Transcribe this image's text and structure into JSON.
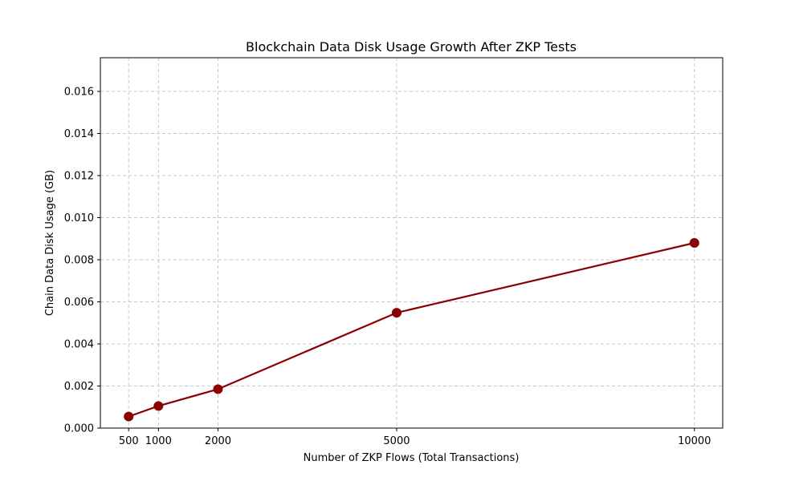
{
  "chart_data": {
    "type": "line",
    "title": "Blockchain Data Disk Usage Growth After ZKP Tests",
    "xlabel": "Number of ZKP Flows (Total Transactions)",
    "ylabel": "Chain Data Disk Usage (GB)",
    "x": [
      500,
      1000,
      2000,
      5000,
      10000
    ],
    "series": [
      {
        "values": [
          0.00055,
          0.00105,
          0.00185,
          0.00548,
          0.0088
        ]
      }
    ],
    "x_ticks": [
      500,
      1000,
      2000,
      5000,
      10000
    ],
    "x_tick_labels": [
      "500",
      "1000",
      "2000",
      "5000",
      "10000"
    ],
    "y_ticks": [
      0,
      0.002,
      0.004,
      0.006,
      0.008,
      0.01,
      0.012,
      0.014,
      0.016
    ],
    "y_tick_labels": [
      "0.000",
      "0.002",
      "0.004",
      "0.006",
      "0.008",
      "0.010",
      "0.012",
      "0.014",
      "0.016"
    ],
    "xlim": [
      25,
      10475
    ],
    "ylim": [
      0,
      0.0176
    ],
    "grid": true,
    "line_color": "#8b0000",
    "grid_color": "#c8c8c8"
  }
}
